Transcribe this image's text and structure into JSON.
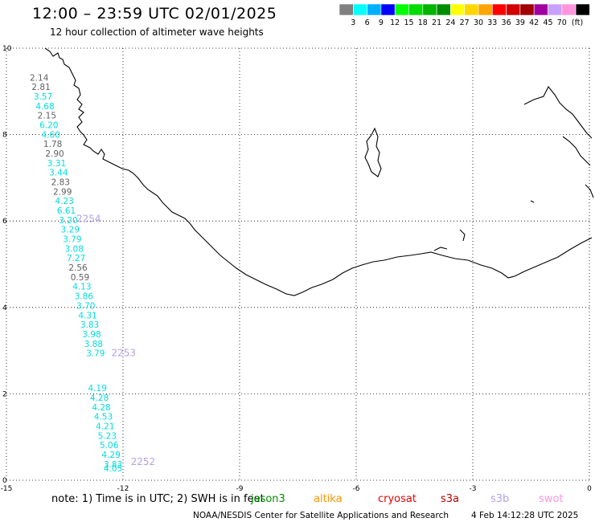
{
  "header": {
    "title": "12:00 – 23:59 UTC 02/01/2025",
    "subtitle": "12 hour collection of altimeter wave heights"
  },
  "color_scale": {
    "unit": "(ft)",
    "bins": [
      {
        "label": "",
        "color": "#808080"
      },
      {
        "label": "3",
        "color": "#00ffff"
      },
      {
        "label": "6",
        "color": "#00b0ff"
      },
      {
        "label": "9",
        "color": "#0000ff"
      },
      {
        "label": "12",
        "color": "#00ff00"
      },
      {
        "label": "15",
        "color": "#00dc00"
      },
      {
        "label": "18",
        "color": "#00b400"
      },
      {
        "label": "21",
        "color": "#008c00"
      },
      {
        "label": "24",
        "color": "#ffff00"
      },
      {
        "label": "27",
        "color": "#ffd700"
      },
      {
        "label": "30",
        "color": "#ffa500"
      },
      {
        "label": "33",
        "color": "#ff0000"
      },
      {
        "label": "36",
        "color": "#d20000"
      },
      {
        "label": "39",
        "color": "#a00000"
      },
      {
        "label": "42",
        "color": "#a000a0"
      },
      {
        "label": "45",
        "color": "#c8a0ff"
      },
      {
        "label": "70",
        "color": "#ff96dc"
      },
      {
        "label": "",
        "color": "#000000"
      }
    ]
  },
  "map": {
    "x_ticks": [
      "-15",
      "-12",
      "-9",
      "-6",
      "-3",
      "0"
    ],
    "y_ticks": [
      "0",
      "2",
      "4",
      "6",
      "8",
      "10"
    ],
    "lon_range": [
      -15,
      0
    ],
    "lat_range": [
      0,
      10
    ],
    "grid": "dotted",
    "observations": [
      {
        "lon": -14.4,
        "lat": 9.25,
        "value": "2.14",
        "color": "#606060"
      },
      {
        "lon": -14.35,
        "lat": 9.03,
        "value": "2.81",
        "color": "#606060"
      },
      {
        "lon": -14.3,
        "lat": 8.81,
        "value": "3.57",
        "color": "#00dcdc"
      },
      {
        "lon": -14.25,
        "lat": 8.59,
        "value": "4.68",
        "color": "#00dcdc"
      },
      {
        "lon": -14.2,
        "lat": 8.37,
        "value": "2.15",
        "color": "#606060"
      },
      {
        "lon": -14.15,
        "lat": 8.15,
        "value": "6.20",
        "color": "#00dcdc"
      },
      {
        "lon": -14.1,
        "lat": 7.93,
        "value": "4.60",
        "color": "#00dcdc"
      },
      {
        "lon": -14.05,
        "lat": 7.71,
        "value": "1.78",
        "color": "#606060"
      },
      {
        "lon": -14.0,
        "lat": 7.49,
        "value": "2.90",
        "color": "#606060"
      },
      {
        "lon": -13.95,
        "lat": 7.27,
        "value": "3.31",
        "color": "#00dcdc"
      },
      {
        "lon": -13.9,
        "lat": 7.05,
        "value": "3.44",
        "color": "#00dcdc"
      },
      {
        "lon": -13.85,
        "lat": 6.83,
        "value": "2.83",
        "color": "#606060"
      },
      {
        "lon": -13.8,
        "lat": 6.61,
        "value": "2.99",
        "color": "#606060"
      },
      {
        "lon": -13.75,
        "lat": 6.39,
        "value": "4.23",
        "color": "#00dcdc"
      },
      {
        "lon": -13.7,
        "lat": 6.17,
        "value": "6.61",
        "color": "#00dcdc"
      },
      {
        "lon": -13.65,
        "lat": 5.95,
        "value": "3.20",
        "color": "#00dcdc"
      },
      {
        "lon": -13.6,
        "lat": 5.73,
        "value": "3.29",
        "color": "#00dcdc"
      },
      {
        "lon": -13.55,
        "lat": 5.51,
        "value": "3.79",
        "color": "#00dcdc"
      },
      {
        "lon": -13.5,
        "lat": 5.29,
        "value": "3.08",
        "color": "#00dcdc"
      },
      {
        "lon": -13.45,
        "lat": 5.07,
        "value": "7.27",
        "color": "#00dcdc"
      },
      {
        "lon": -13.4,
        "lat": 4.85,
        "value": "2.56",
        "color": "#606060"
      },
      {
        "lon": -13.35,
        "lat": 4.63,
        "value": "0.59",
        "color": "#606060"
      },
      {
        "lon": -13.3,
        "lat": 4.41,
        "value": "4.13",
        "color": "#00dcdc"
      },
      {
        "lon": -13.25,
        "lat": 4.19,
        "value": "3.86",
        "color": "#00dcdc"
      },
      {
        "lon": -13.2,
        "lat": 3.97,
        "value": "3.70",
        "color": "#00dcdc"
      },
      {
        "lon": -13.15,
        "lat": 3.75,
        "value": "4.31",
        "color": "#00dcdc"
      },
      {
        "lon": -13.1,
        "lat": 3.53,
        "value": "3.83",
        "color": "#00dcdc"
      },
      {
        "lon": -13.05,
        "lat": 3.31,
        "value": "3.98",
        "color": "#00dcdc"
      },
      {
        "lon": -13.0,
        "lat": 3.09,
        "value": "3.88",
        "color": "#00dcdc"
      },
      {
        "lon": -12.95,
        "lat": 2.87,
        "value": "3.79",
        "color": "#00dcdc"
      },
      {
        "lon": -12.9,
        "lat": 2.06,
        "value": "4.19",
        "color": "#00dcdc"
      },
      {
        "lon": -12.85,
        "lat": 1.84,
        "value": "4.28",
        "color": "#00dcdc"
      },
      {
        "lon": -12.8,
        "lat": 1.62,
        "value": "4.28",
        "color": "#00dcdc"
      },
      {
        "lon": -12.75,
        "lat": 1.4,
        "value": "4.53",
        "color": "#00dcdc"
      },
      {
        "lon": -12.7,
        "lat": 1.18,
        "value": "4.21",
        "color": "#00dcdc"
      },
      {
        "lon": -12.65,
        "lat": 0.96,
        "value": "5.23",
        "color": "#00dcdc"
      },
      {
        "lon": -12.6,
        "lat": 0.74,
        "value": "5.06",
        "color": "#00dcdc"
      },
      {
        "lon": -12.55,
        "lat": 0.52,
        "value": "4.29",
        "color": "#00dcdc"
      },
      {
        "lon": -12.5,
        "lat": 0.3,
        "value": "3.83",
        "color": "#00dcdc"
      },
      {
        "lon": -12.5,
        "lat": 0.2,
        "value": "4.05",
        "color": "#00dcdc"
      }
    ],
    "pass_times": [
      {
        "lon": -13.2,
        "lat": 5.98,
        "label": "2254",
        "color": "#b4a0e6"
      },
      {
        "lon": -12.3,
        "lat": 2.87,
        "label": "2253",
        "color": "#b4a0e6"
      },
      {
        "lon": -11.8,
        "lat": 0.35,
        "label": "2252",
        "color": "#b4a0e6"
      }
    ]
  },
  "footer": {
    "note": "note: 1) Time is in UTC; 2) SWH is in feet",
    "satellites": [
      {
        "name": "jason3",
        "color": "#008c00"
      },
      {
        "name": "altika",
        "color": "#ff9600"
      },
      {
        "name": "cryosat",
        "color": "#e60000"
      },
      {
        "name": "s3a",
        "color": "#b40000"
      },
      {
        "name": "s3b",
        "color": "#b4a0e6"
      },
      {
        "name": "swot",
        "color": "#ff96dc"
      }
    ],
    "credit": "NOAA/NESDIS Center for Satellite Applications and Research",
    "timestamp": "4 Feb 14:12:28 UTC 2025"
  }
}
